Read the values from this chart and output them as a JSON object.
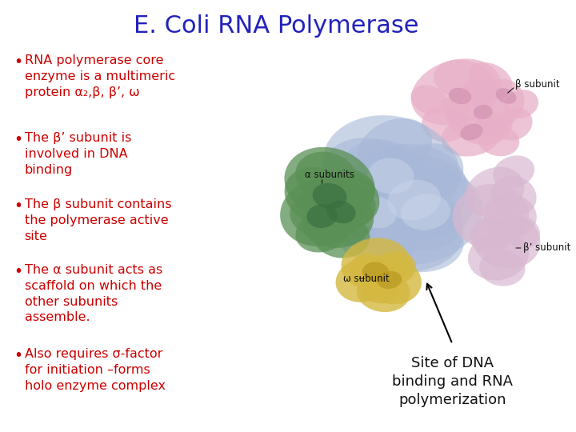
{
  "title": "E. Coli RNA Polymerase",
  "title_color": "#2222bb",
  "title_fontsize": 22,
  "background_color": "#ffffff",
  "bullet_color": "#cc0000",
  "bullet_fontsize": 11.5,
  "bullets": [
    "RNA polymerase core\nenzyme is a multimeric\nprotein α₂,β, β’, ω",
    "The β’ subunit is\ninvolved in DNA\nbinding",
    "The β subunit contains\nthe polymerase active\nsite",
    "The α subunit acts as\nscaffold on which the\nother subunits\nassemble.",
    "Also requires σ-factor\nfor initiation –forms\nholo enzyme complex"
  ],
  "annotation_text": "Site of DNA\nbinding and RNA\npolymerization",
  "annotation_color": "#111111",
  "annotation_fontsize": 13
}
